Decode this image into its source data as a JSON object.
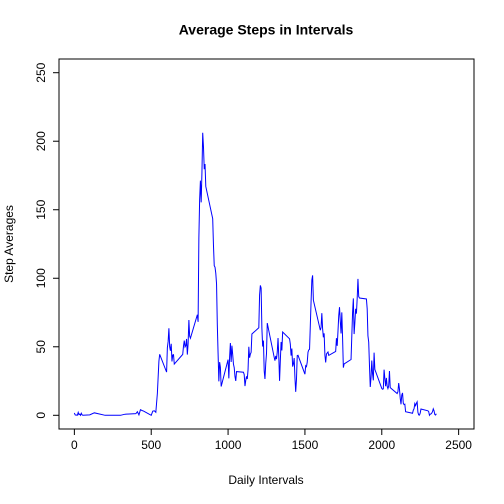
{
  "chart_data": {
    "type": "line",
    "title": "Average Steps in Intervals",
    "x_label": "Daily Intervals",
    "y_label": "Step Averages",
    "xlim": [
      -100,
      2600
    ],
    "ylim": [
      -10,
      260
    ],
    "xticks": [
      0,
      500,
      1000,
      1500,
      2000,
      2500
    ],
    "yticks": [
      0,
      50,
      100,
      150,
      200,
      250
    ],
    "series": [
      {
        "color": "#0000ff",
        "x": [
          0,
          5,
          10,
          15,
          20,
          25,
          30,
          35,
          40,
          45,
          50,
          55,
          100,
          130,
          200,
          230,
          300,
          330,
          400,
          410,
          420,
          430,
          440,
          450,
          500,
          510,
          520,
          530,
          540,
          550,
          555,
          600,
          605,
          610,
          615,
          620,
          625,
          630,
          635,
          640,
          645,
          650,
          700,
          705,
          710,
          715,
          720,
          725,
          730,
          735,
          740,
          745,
          750,
          755,
          800,
          805,
          810,
          815,
          820,
          825,
          830,
          835,
          840,
          845,
          850,
          855,
          900,
          905,
          910,
          915,
          920,
          925,
          930,
          935,
          940,
          945,
          950,
          955,
          1000,
          1005,
          1010,
          1015,
          1020,
          1025,
          1030,
          1035,
          1040,
          1045,
          1050,
          1055,
          1100,
          1105,
          1110,
          1115,
          1120,
          1125,
          1130,
          1135,
          1140,
          1145,
          1150,
          1155,
          1200,
          1205,
          1210,
          1215,
          1220,
          1225,
          1230,
          1235,
          1240,
          1245,
          1250,
          1255,
          1300,
          1305,
          1310,
          1315,
          1320,
          1325,
          1330,
          1335,
          1340,
          1345,
          1350,
          1355,
          1400,
          1405,
          1410,
          1415,
          1420,
          1425,
          1430,
          1435,
          1440,
          1445,
          1450,
          1455,
          1500,
          1505,
          1510,
          1515,
          1520,
          1525,
          1530,
          1535,
          1540,
          1545,
          1550,
          1555,
          1600,
          1605,
          1610,
          1615,
          1620,
          1625,
          1630,
          1635,
          1640,
          1645,
          1650,
          1655,
          1700,
          1705,
          1710,
          1715,
          1720,
          1725,
          1730,
          1735,
          1740,
          1745,
          1750,
          1755,
          1800,
          1805,
          1810,
          1815,
          1820,
          1825,
          1830,
          1835,
          1840,
          1845,
          1850,
          1855,
          1900,
          1905,
          1910,
          1915,
          1920,
          1925,
          1930,
          1935,
          1940,
          1945,
          1950,
          1955,
          2000,
          2005,
          2010,
          2015,
          2020,
          2025,
          2030,
          2035,
          2040,
          2045,
          2050,
          2055,
          2100,
          2105,
          2110,
          2115,
          2120,
          2125,
          2130,
          2135,
          2140,
          2145,
          2150,
          2155,
          2200,
          2205,
          2210,
          2215,
          2220,
          2225,
          2230,
          2235,
          2240,
          2245,
          2250,
          2255,
          2300,
          2305,
          2310,
          2315,
          2320,
          2325,
          2330,
          2335,
          2340,
          2345,
          2350,
          2355
        ],
        "values": [
          1.7,
          0.3,
          0.1,
          0.2,
          0.1,
          2.1,
          0.5,
          0.9,
          0,
          1.5,
          0.4,
          0,
          0.3,
          1.8,
          0,
          0,
          0,
          0.8,
          1.2,
          2.6,
          0.3,
          4.1,
          3.5,
          3.1,
          0,
          3,
          3.3,
          2.2,
          16,
          39.5,
          44.5,
          31.5,
          49.3,
          53.8,
          63.5,
          50,
          47.1,
          52.2,
          39.3,
          44,
          44.2,
          37.4,
          43.8,
          44.4,
          50.5,
          54.5,
          49.9,
          50.9,
          55.7,
          44.3,
          52.3,
          69.5,
          57.8,
          56.2,
          73.4,
          68.2,
          129.4,
          157.5,
          171.2,
          155.4,
          177.3,
          206.2,
          195.9,
          179.6,
          183.4,
          167,
          143.5,
          124,
          109.1,
          108.1,
          103.7,
          95.9,
          66.2,
          45.2,
          24.8,
          38.8,
          35,
          21,
          40.6,
          27,
          42.4,
          52.7,
          38.9,
          50.8,
          44.3,
          37.4,
          34.7,
          28.3,
          25.1,
          31.9,
          31.4,
          29.7,
          21.3,
          25.5,
          28.4,
          26.5,
          33.4,
          50,
          42,
          44.6,
          46,
          59.3,
          63.9,
          87.7,
          94.8,
          92.8,
          63.4,
          50.2,
          54.5,
          32.4,
          26.5,
          37.7,
          45.1,
          67.3,
          42.3,
          39.9,
          43.3,
          41,
          46.2,
          56.4,
          42.8,
          25.1,
          40,
          53.5,
          47.3,
          60.8,
          55.8,
          52,
          43.6,
          48.7,
          35.5,
          37.5,
          41.8,
          27.5,
          17.1,
          26.1,
          43.6,
          43.8,
          30,
          36.1,
          35.5,
          38.8,
          46,
          47.8,
          48.1,
          65.3,
          82.9,
          98.7,
          102.1,
          84,
          62.1,
          64.1,
          74.5,
          63.2,
          56.9,
          59.8,
          43.9,
          38.6,
          44.7,
          45.5,
          46.2,
          43.7,
          46.6,
          56.3,
          50.7,
          61.2,
          72.7,
          78.9,
          68.9,
          59.7,
          75.1,
          56.5,
          34.8,
          37.5,
          40.7,
          58,
          74.7,
          85.3,
          59.3,
          67.8,
          77.7,
          74.2,
          85.3,
          99.5,
          86.6,
          85.6,
          84.9,
          77.8,
          58,
          53.4,
          36.3,
          20.7,
          27.4,
          40,
          30.2,
          25.5,
          45.7,
          33.5,
          19.6,
          19,
          19.3,
          33.3,
          26.8,
          21.2,
          27.3,
          21.3,
          19.5,
          21.3,
          32.3,
          20.2,
          15.9,
          17.2,
          23.5,
          19.2,
          12.5,
          8,
          14.7,
          16.3,
          8.7,
          7.8,
          8.1,
          2.6,
          1.5,
          3.7,
          4.8,
          8.5,
          7.1,
          8.7,
          9.8,
          2.2,
          0.3,
          0.1,
          1.6,
          4.6,
          3.3,
          2.8,
          0,
          0.8,
          1,
          1.6,
          2.6,
          4.7,
          3.3,
          0.6,
          0.2,
          1.1
        ]
      }
    ]
  }
}
